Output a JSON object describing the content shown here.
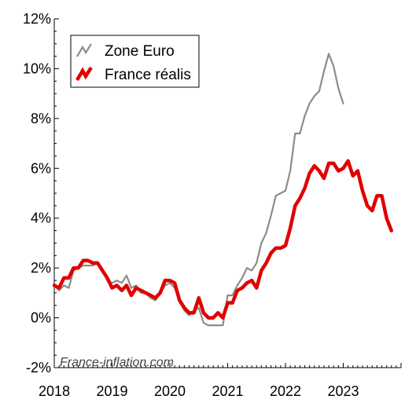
{
  "chart_data": {
    "type": "line",
    "title": "",
    "xlabel": "",
    "ylabel": "",
    "x_ticks": [
      "2018",
      "2019",
      "2020",
      "2021",
      "2022",
      "2023"
    ],
    "y_ticks": [
      "-2%",
      "0%",
      "2%",
      "4%",
      "6%",
      "8%",
      "10%",
      "12%"
    ],
    "xlim": [
      2018.0,
      2024.0
    ],
    "ylim": [
      -2,
      12
    ],
    "grid": false,
    "legend_position": "top-left",
    "watermark": "France-inflation.com",
    "series": [
      {
        "name": "Zone Euro",
        "color": "#8c8c8c",
        "x": [
          2018.0,
          2018.083,
          2018.167,
          2018.25,
          2018.333,
          2018.417,
          2018.5,
          2018.583,
          2018.667,
          2018.75,
          2018.833,
          2018.917,
          2019.0,
          2019.083,
          2019.167,
          2019.25,
          2019.333,
          2019.417,
          2019.5,
          2019.583,
          2019.667,
          2019.75,
          2019.833,
          2019.917,
          2020.0,
          2020.083,
          2020.167,
          2020.25,
          2020.333,
          2020.417,
          2020.5,
          2020.583,
          2020.667,
          2020.75,
          2020.833,
          2020.917,
          2021.0,
          2021.083,
          2021.167,
          2021.25,
          2021.333,
          2021.417,
          2021.5,
          2021.583,
          2021.667,
          2021.75,
          2021.833,
          2021.917,
          2022.0,
          2022.083,
          2022.167,
          2022.25,
          2022.333,
          2022.417,
          2022.5,
          2022.583,
          2022.667,
          2022.75,
          2022.833,
          2022.917,
          2023.0
        ],
        "values": [
          1.3,
          1.1,
          1.3,
          1.2,
          1.9,
          2.0,
          2.1,
          2.1,
          2.1,
          2.2,
          1.9,
          1.5,
          1.4,
          1.5,
          1.4,
          1.7,
          1.2,
          1.3,
          1.0,
          1.0,
          0.8,
          0.7,
          1.0,
          1.3,
          1.4,
          1.2,
          0.7,
          0.3,
          0.1,
          0.3,
          0.4,
          -0.2,
          -0.3,
          -0.3,
          -0.3,
          -0.3,
          0.9,
          0.9,
          1.3,
          1.6,
          2.0,
          1.9,
          2.2,
          3.0,
          3.4,
          4.1,
          4.9,
          5.0,
          5.1,
          5.9,
          7.4,
          7.4,
          8.1,
          8.6,
          8.9,
          9.1,
          9.9,
          10.6,
          10.1,
          9.2,
          8.6
        ]
      },
      {
        "name": "France réalis",
        "color": "#e00000",
        "x": [
          2018.0,
          2018.083,
          2018.167,
          2018.25,
          2018.333,
          2018.417,
          2018.5,
          2018.583,
          2018.667,
          2018.75,
          2018.833,
          2018.917,
          2019.0,
          2019.083,
          2019.167,
          2019.25,
          2019.333,
          2019.417,
          2019.5,
          2019.583,
          2019.667,
          2019.75,
          2019.833,
          2019.917,
          2020.0,
          2020.083,
          2020.167,
          2020.25,
          2020.333,
          2020.417,
          2020.5,
          2020.583,
          2020.667,
          2020.75,
          2020.833,
          2020.917,
          2021.0,
          2021.083,
          2021.167,
          2021.25,
          2021.333,
          2021.417,
          2021.5,
          2021.583,
          2021.667,
          2021.75,
          2021.833,
          2021.917,
          2022.0,
          2022.083,
          2022.167,
          2022.25,
          2022.333,
          2022.417,
          2022.5,
          2022.583,
          2022.667,
          2022.75,
          2022.833,
          2022.917,
          2023.0,
          2023.083,
          2023.167,
          2023.25,
          2023.333,
          2023.417,
          2023.5,
          2023.583,
          2023.667,
          2023.75,
          2023.833
        ],
        "values": [
          1.3,
          1.2,
          1.6,
          1.6,
          2.0,
          2.0,
          2.3,
          2.3,
          2.2,
          2.2,
          1.9,
          1.6,
          1.2,
          1.3,
          1.1,
          1.3,
          0.9,
          1.2,
          1.1,
          1.0,
          0.9,
          0.8,
          1.0,
          1.5,
          1.5,
          1.4,
          0.7,
          0.4,
          0.2,
          0.2,
          0.8,
          0.2,
          0.0,
          0.0,
          0.2,
          0.0,
          0.6,
          0.6,
          1.1,
          1.2,
          1.4,
          1.5,
          1.2,
          1.9,
          2.2,
          2.6,
          2.8,
          2.8,
          2.9,
          3.6,
          4.5,
          4.8,
          5.2,
          5.8,
          6.1,
          5.9,
          5.6,
          6.2,
          6.2,
          5.9,
          6.0,
          6.3,
          5.7,
          5.9,
          5.1,
          4.5,
          4.3,
          4.9,
          4.9,
          4.0,
          3.5
        ]
      }
    ]
  }
}
